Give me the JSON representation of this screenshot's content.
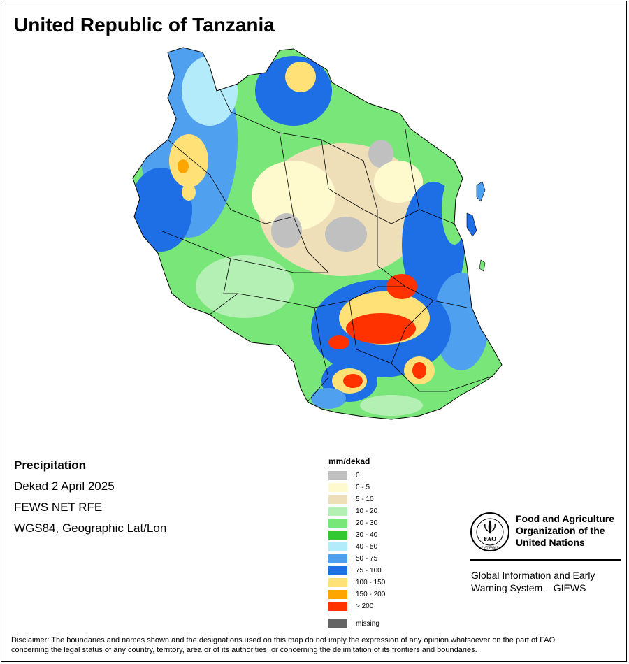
{
  "map": {
    "title": "United Republic of Tanzania",
    "info": {
      "variable": "Precipitation",
      "period": "Dekad 2 April 2025",
      "source": "FEWS NET RFE",
      "projection": "WGS84, Geographic Lat/Lon"
    },
    "legend": {
      "title": "mm/dekad",
      "classes": [
        {
          "label": "0",
          "color": "#c0c0c0"
        },
        {
          "label": "0 - 5",
          "color": "#fffacd"
        },
        {
          "label": "5 - 10",
          "color": "#eedfb9"
        },
        {
          "label": "10 - 20",
          "color": "#b4f0b4"
        },
        {
          "label": "20 - 30",
          "color": "#78e678"
        },
        {
          "label": "30 - 40",
          "color": "#32c832"
        },
        {
          "label": "40 - 50",
          "color": "#b4ebfa"
        },
        {
          "label": "50 - 75",
          "color": "#50a0f0"
        },
        {
          "label": "75 - 100",
          "color": "#1e6ee6"
        },
        {
          "label": "100 - 150",
          "color": "#ffe178"
        },
        {
          "label": "150 - 200",
          "color": "#ffa500"
        },
        {
          "label": "> 200",
          "color": "#ff3200"
        }
      ],
      "missing": {
        "label": "missing",
        "color": "#646464"
      }
    }
  },
  "branding": {
    "org_line1": "Food and Agriculture",
    "org_line2": "Organization of the",
    "org_line3": "United Nations",
    "system_line1": "Global Information and Early",
    "system_line2": "Warning System – GIEWS",
    "logo_letters": "FAO",
    "logo_motto": "FIAT PANIS"
  },
  "disclaimer": {
    "line1": "Disclaimer: The boundaries and names shown and the designations used on this map do not imply the expression of any opinion whatsoever on the part of FAO",
    "line2": "concerning the legal status of any country, territory, area or of its authorities, or concerning the delimitation of its frontiers and boundaries."
  }
}
